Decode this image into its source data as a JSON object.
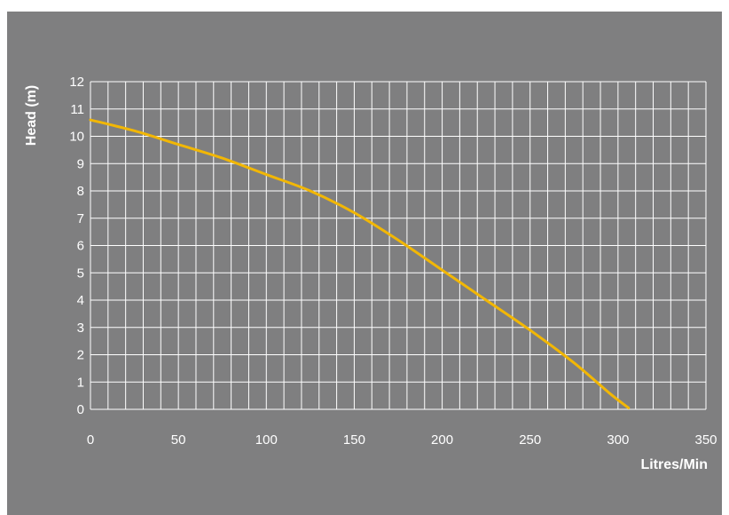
{
  "colors": {
    "background": "#7f7f80",
    "grid": "#ffffff",
    "curve": "#f2b705",
    "text": "#ffffff"
  },
  "chart_data": {
    "type": "line",
    "title": "",
    "xlabel": "Litres/Min",
    "ylabel": "Head (m)",
    "xlim": [
      0,
      350
    ],
    "ylim": [
      0,
      12
    ],
    "x_ticks": [
      0,
      50,
      100,
      150,
      200,
      250,
      300,
      350
    ],
    "y_ticks": [
      0,
      1,
      2,
      3,
      4,
      5,
      6,
      7,
      8,
      9,
      10,
      11,
      12
    ],
    "x_gridline_step": 10,
    "y_gridline_step": 1,
    "grid": true,
    "legend": "none",
    "series": [
      {
        "x": [
          0,
          25,
          50,
          75,
          100,
          125,
          150,
          175,
          200,
          225,
          250,
          275,
          295,
          306
        ],
        "values": [
          10.6,
          10.2,
          9.7,
          9.2,
          8.6,
          8.0,
          7.2,
          6.2,
          5.1,
          4.0,
          2.9,
          1.7,
          0.6,
          0.05
        ]
      }
    ]
  }
}
